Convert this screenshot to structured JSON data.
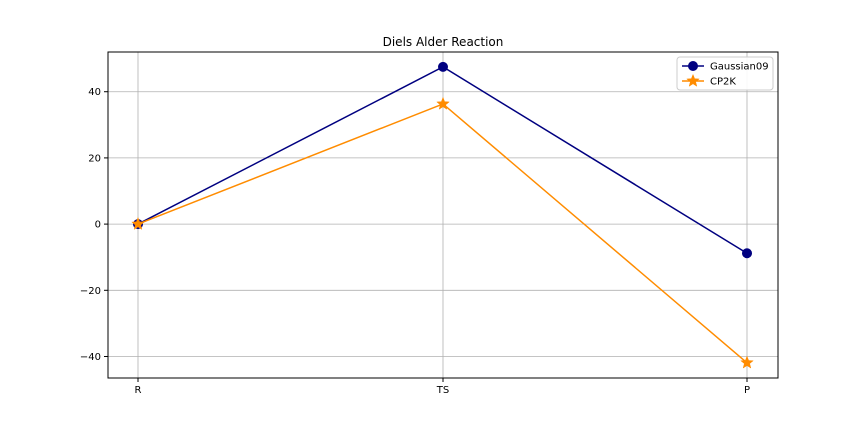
{
  "chart_data": {
    "type": "line",
    "title": "Diels Alder Reaction",
    "categories": [
      "R",
      "TS",
      "P"
    ],
    "ylim": [
      -46.5,
      52
    ],
    "yticks": [
      -40,
      -20,
      0,
      20,
      40
    ],
    "ytick_labels": [
      "−40",
      "−20",
      "0",
      "20",
      "40"
    ],
    "grid": true,
    "legend_position": "top-right",
    "series": [
      {
        "name": "Gaussian09",
        "values": [
          0,
          47.5,
          -8.8
        ],
        "color": "#000080",
        "marker": "circle"
      },
      {
        "name": "CP2K",
        "values": [
          0,
          36.3,
          -41.9
        ],
        "color": "#ff8c00",
        "marker": "star"
      }
    ]
  }
}
